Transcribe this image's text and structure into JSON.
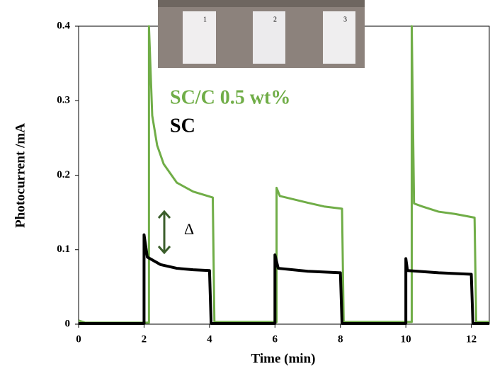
{
  "chart_data": {
    "type": "line",
    "x_label": "Time (min)",
    "y_label": "Photocurrent /mA",
    "xlim": [
      0,
      12.55
    ],
    "ylim": [
      0,
      0.4
    ],
    "xticks": [
      0,
      2,
      4,
      6,
      8,
      10,
      12
    ],
    "yticks": [
      0,
      0.1,
      0.2,
      0.3,
      0.4
    ],
    "annotations": [
      "Δ"
    ],
    "inset_labels": [
      "1",
      "2",
      "3"
    ],
    "series": [
      {
        "name": "SC/C 0.5 wt%",
        "color": "#70ad47",
        "x": [
          0,
          0.2,
          2.15,
          2.15,
          2.25,
          2.4,
          2.6,
          3.0,
          3.5,
          4.1,
          4.15,
          6.05,
          6.05,
          6.15,
          7.0,
          7.5,
          8.05,
          8.1,
          10.18,
          10.18,
          10.25,
          10.5,
          11.0,
          11.5,
          12.1,
          12.15,
          12.55
        ],
        "values": [
          0.005,
          0.002,
          0.002,
          0.4,
          0.28,
          0.24,
          0.215,
          0.19,
          0.178,
          0.17,
          0.003,
          0.003,
          0.183,
          0.172,
          0.163,
          0.158,
          0.155,
          0.003,
          0.003,
          0.4,
          0.162,
          0.158,
          0.151,
          0.148,
          0.143,
          0.003,
          0.003
        ]
      },
      {
        "name": "SC",
        "color": "#000000",
        "x": [
          0,
          2.0,
          2.0,
          2.1,
          2.5,
          3.0,
          3.5,
          4.0,
          4.05,
          6.0,
          6.0,
          6.1,
          7.0,
          8.0,
          8.05,
          10.0,
          10.0,
          10.05,
          11.0,
          12.0,
          12.05,
          12.55
        ],
        "values": [
          0.001,
          0.001,
          0.12,
          0.09,
          0.08,
          0.075,
          0.073,
          0.072,
          0.001,
          0.001,
          0.093,
          0.075,
          0.071,
          0.069,
          0.001,
          0.001,
          0.088,
          0.072,
          0.069,
          0.067,
          0.001,
          0.001
        ]
      }
    ]
  }
}
